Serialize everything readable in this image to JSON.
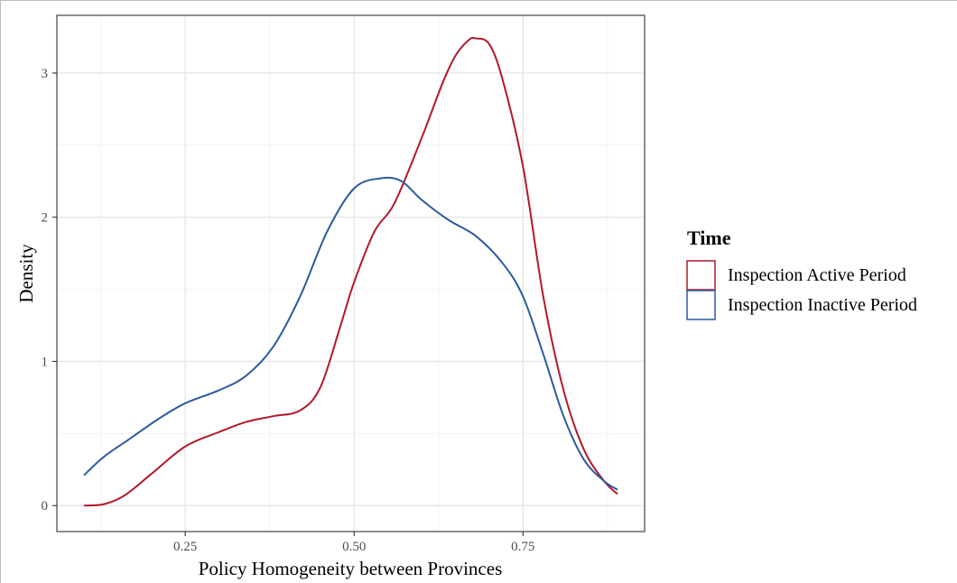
{
  "chart_data": {
    "type": "line",
    "title": "",
    "xlabel": "Policy Homogeneity between Provinces",
    "ylabel": "Density",
    "xlim": [
      0.06,
      0.93
    ],
    "ylim": [
      -0.18,
      3.4
    ],
    "x_ticks": [
      {
        "value": 0.25,
        "label": "0.25"
      },
      {
        "value": 0.5,
        "label": "0.50"
      },
      {
        "value": 0.75,
        "label": "0.75"
      }
    ],
    "y_ticks": [
      {
        "value": 0,
        "label": "0"
      },
      {
        "value": 1,
        "label": "1"
      },
      {
        "value": 2,
        "label": "2"
      },
      {
        "value": 3,
        "label": "3"
      }
    ],
    "grid": true,
    "legend": {
      "title": "Time",
      "placement": "right",
      "entries": [
        "Inspection Active Period",
        "Inspection Inactive Period"
      ]
    },
    "series": [
      {
        "name": "Inspection Active Period",
        "color": "#b2182b",
        "x": [
          0.1,
          0.13,
          0.16,
          0.2,
          0.25,
          0.3,
          0.34,
          0.38,
          0.42,
          0.45,
          0.48,
          0.5,
          0.53,
          0.56,
          0.6,
          0.63,
          0.65,
          0.67,
          0.68,
          0.7,
          0.72,
          0.75,
          0.78,
          0.81,
          0.84,
          0.87,
          0.89
        ],
        "y": [
          0.0,
          0.01,
          0.07,
          0.22,
          0.41,
          0.51,
          0.58,
          0.62,
          0.66,
          0.82,
          1.25,
          1.55,
          1.9,
          2.1,
          2.55,
          2.92,
          3.12,
          3.23,
          3.24,
          3.2,
          2.95,
          2.35,
          1.45,
          0.8,
          0.39,
          0.17,
          0.08
        ]
      },
      {
        "name": "Inspection Inactive Period",
        "color": "#2c5aa0",
        "x": [
          0.1,
          0.13,
          0.17,
          0.21,
          0.25,
          0.3,
          0.34,
          0.38,
          0.42,
          0.46,
          0.5,
          0.54,
          0.57,
          0.6,
          0.64,
          0.68,
          0.72,
          0.75,
          0.78,
          0.81,
          0.84,
          0.87,
          0.89
        ],
        "y": [
          0.21,
          0.34,
          0.47,
          0.6,
          0.71,
          0.8,
          0.9,
          1.1,
          1.45,
          1.9,
          2.2,
          2.27,
          2.25,
          2.12,
          1.98,
          1.87,
          1.68,
          1.45,
          1.05,
          0.62,
          0.32,
          0.17,
          0.11
        ]
      }
    ]
  }
}
